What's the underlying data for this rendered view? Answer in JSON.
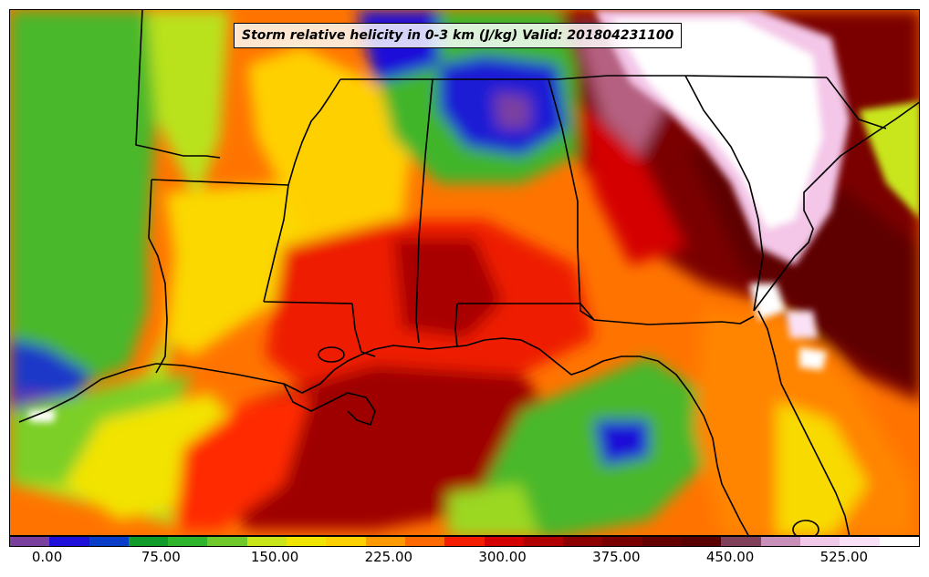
{
  "title": "Storm relative helicity in 0-3 km (J/kg) Valid: 201804231100",
  "colorbar": {
    "tick_labels": [
      "0.00",
      "75.00",
      "150.00",
      "225.00",
      "300.00",
      "375.00",
      "450.00",
      "525.00"
    ],
    "colors": [
      "#7b3fa0",
      "#1e10d8",
      "#0b3ec8",
      "#109c2a",
      "#2fb52b",
      "#70c92a",
      "#c9e61b",
      "#f0e500",
      "#ffd100",
      "#ff9a00",
      "#ff6a00",
      "#f41d00",
      "#d40000",
      "#b00000",
      "#8d0000",
      "#7a0000",
      "#640000",
      "#580000",
      "#80405a",
      "#c890b8",
      "#f0c8e8",
      "#f8e0f6",
      "#ffffff"
    ],
    "colormap_range": [
      -25,
      575
    ]
  },
  "map": {
    "region": "Southeastern United States and Gulf of Mexico",
    "valid_time": "201804231100",
    "variable": "Storm relative helicity 0-3 km",
    "units": "J/kg"
  }
}
